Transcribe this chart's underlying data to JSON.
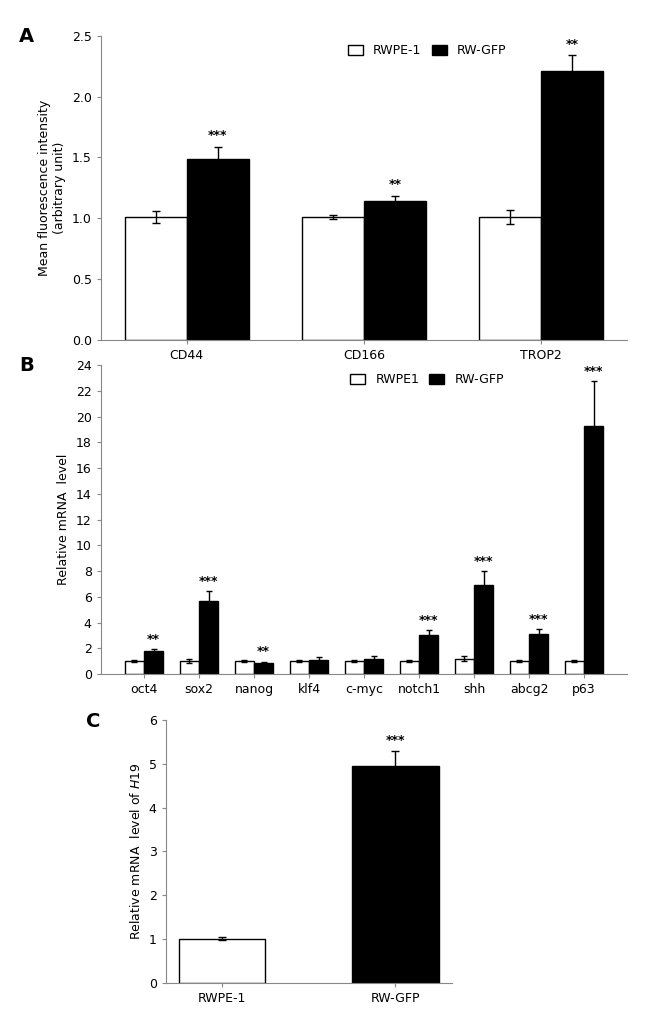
{
  "panel_A": {
    "categories": [
      "CD44",
      "CD166",
      "TROP2"
    ],
    "rwpe1_values": [
      1.01,
      1.01,
      1.01
    ],
    "rwgfp_values": [
      1.49,
      1.14,
      2.21
    ],
    "rwpe1_errors": [
      0.05,
      0.02,
      0.06
    ],
    "rwgfp_errors": [
      0.1,
      0.04,
      0.13
    ],
    "significance": [
      "***",
      "**",
      "**"
    ],
    "ylabel_line1": "Mean fluorescence intensity",
    "ylabel_line2": "(arbitrary unit)",
    "ylim": [
      0,
      2.5
    ],
    "yticks": [
      0,
      0.5,
      1.0,
      1.5,
      2.0,
      2.5
    ],
    "legend_labels": [
      "RWPE-1",
      "RW-GFP"
    ]
  },
  "panel_B": {
    "categories": [
      "oct4",
      "sox2",
      "nanog",
      "klf4",
      "c-myc",
      "notch1",
      "shh",
      "abcg2",
      "p63"
    ],
    "rwpe1_values": [
      1.0,
      1.0,
      1.0,
      1.0,
      1.0,
      1.0,
      1.2,
      1.0,
      1.0
    ],
    "rwgfp_values": [
      1.75,
      5.7,
      0.85,
      1.1,
      1.15,
      3.05,
      6.9,
      3.1,
      19.3
    ],
    "rwpe1_errors": [
      0.1,
      0.15,
      0.1,
      0.08,
      0.1,
      0.1,
      0.2,
      0.1,
      0.1
    ],
    "rwgfp_errors": [
      0.2,
      0.75,
      0.12,
      0.2,
      0.25,
      0.35,
      1.1,
      0.4,
      3.5
    ],
    "significance": [
      "**",
      "***",
      "**",
      null,
      null,
      "***",
      "***",
      "***",
      "***"
    ],
    "ylabel": "Relative mRNA  level",
    "ylim": [
      0,
      24
    ],
    "yticks": [
      0,
      2,
      4,
      6,
      8,
      10,
      12,
      14,
      16,
      18,
      20,
      22,
      24
    ],
    "legend_labels": [
      "RWPE1",
      "RW-GFP"
    ]
  },
  "panel_C": {
    "categories": [
      "RWPE-1",
      "RW-GFP"
    ],
    "values": [
      1.01,
      4.95
    ],
    "errors": [
      0.04,
      0.35
    ],
    "significance": [
      null,
      "***"
    ],
    "ylabel": "Relative mRNA  level of $\\it{H19}$",
    "ylim": [
      0,
      6
    ],
    "yticks": [
      0,
      1,
      2,
      3,
      4,
      5,
      6
    ],
    "colors": [
      "white",
      "black"
    ]
  },
  "bar_width": 0.35,
  "color_white": "#ffffff",
  "color_black": "#000000",
  "edge_color": "#000000",
  "font_size": 9,
  "tick_font_size": 9,
  "label_font_size": 10,
  "panel_label_size": 14
}
